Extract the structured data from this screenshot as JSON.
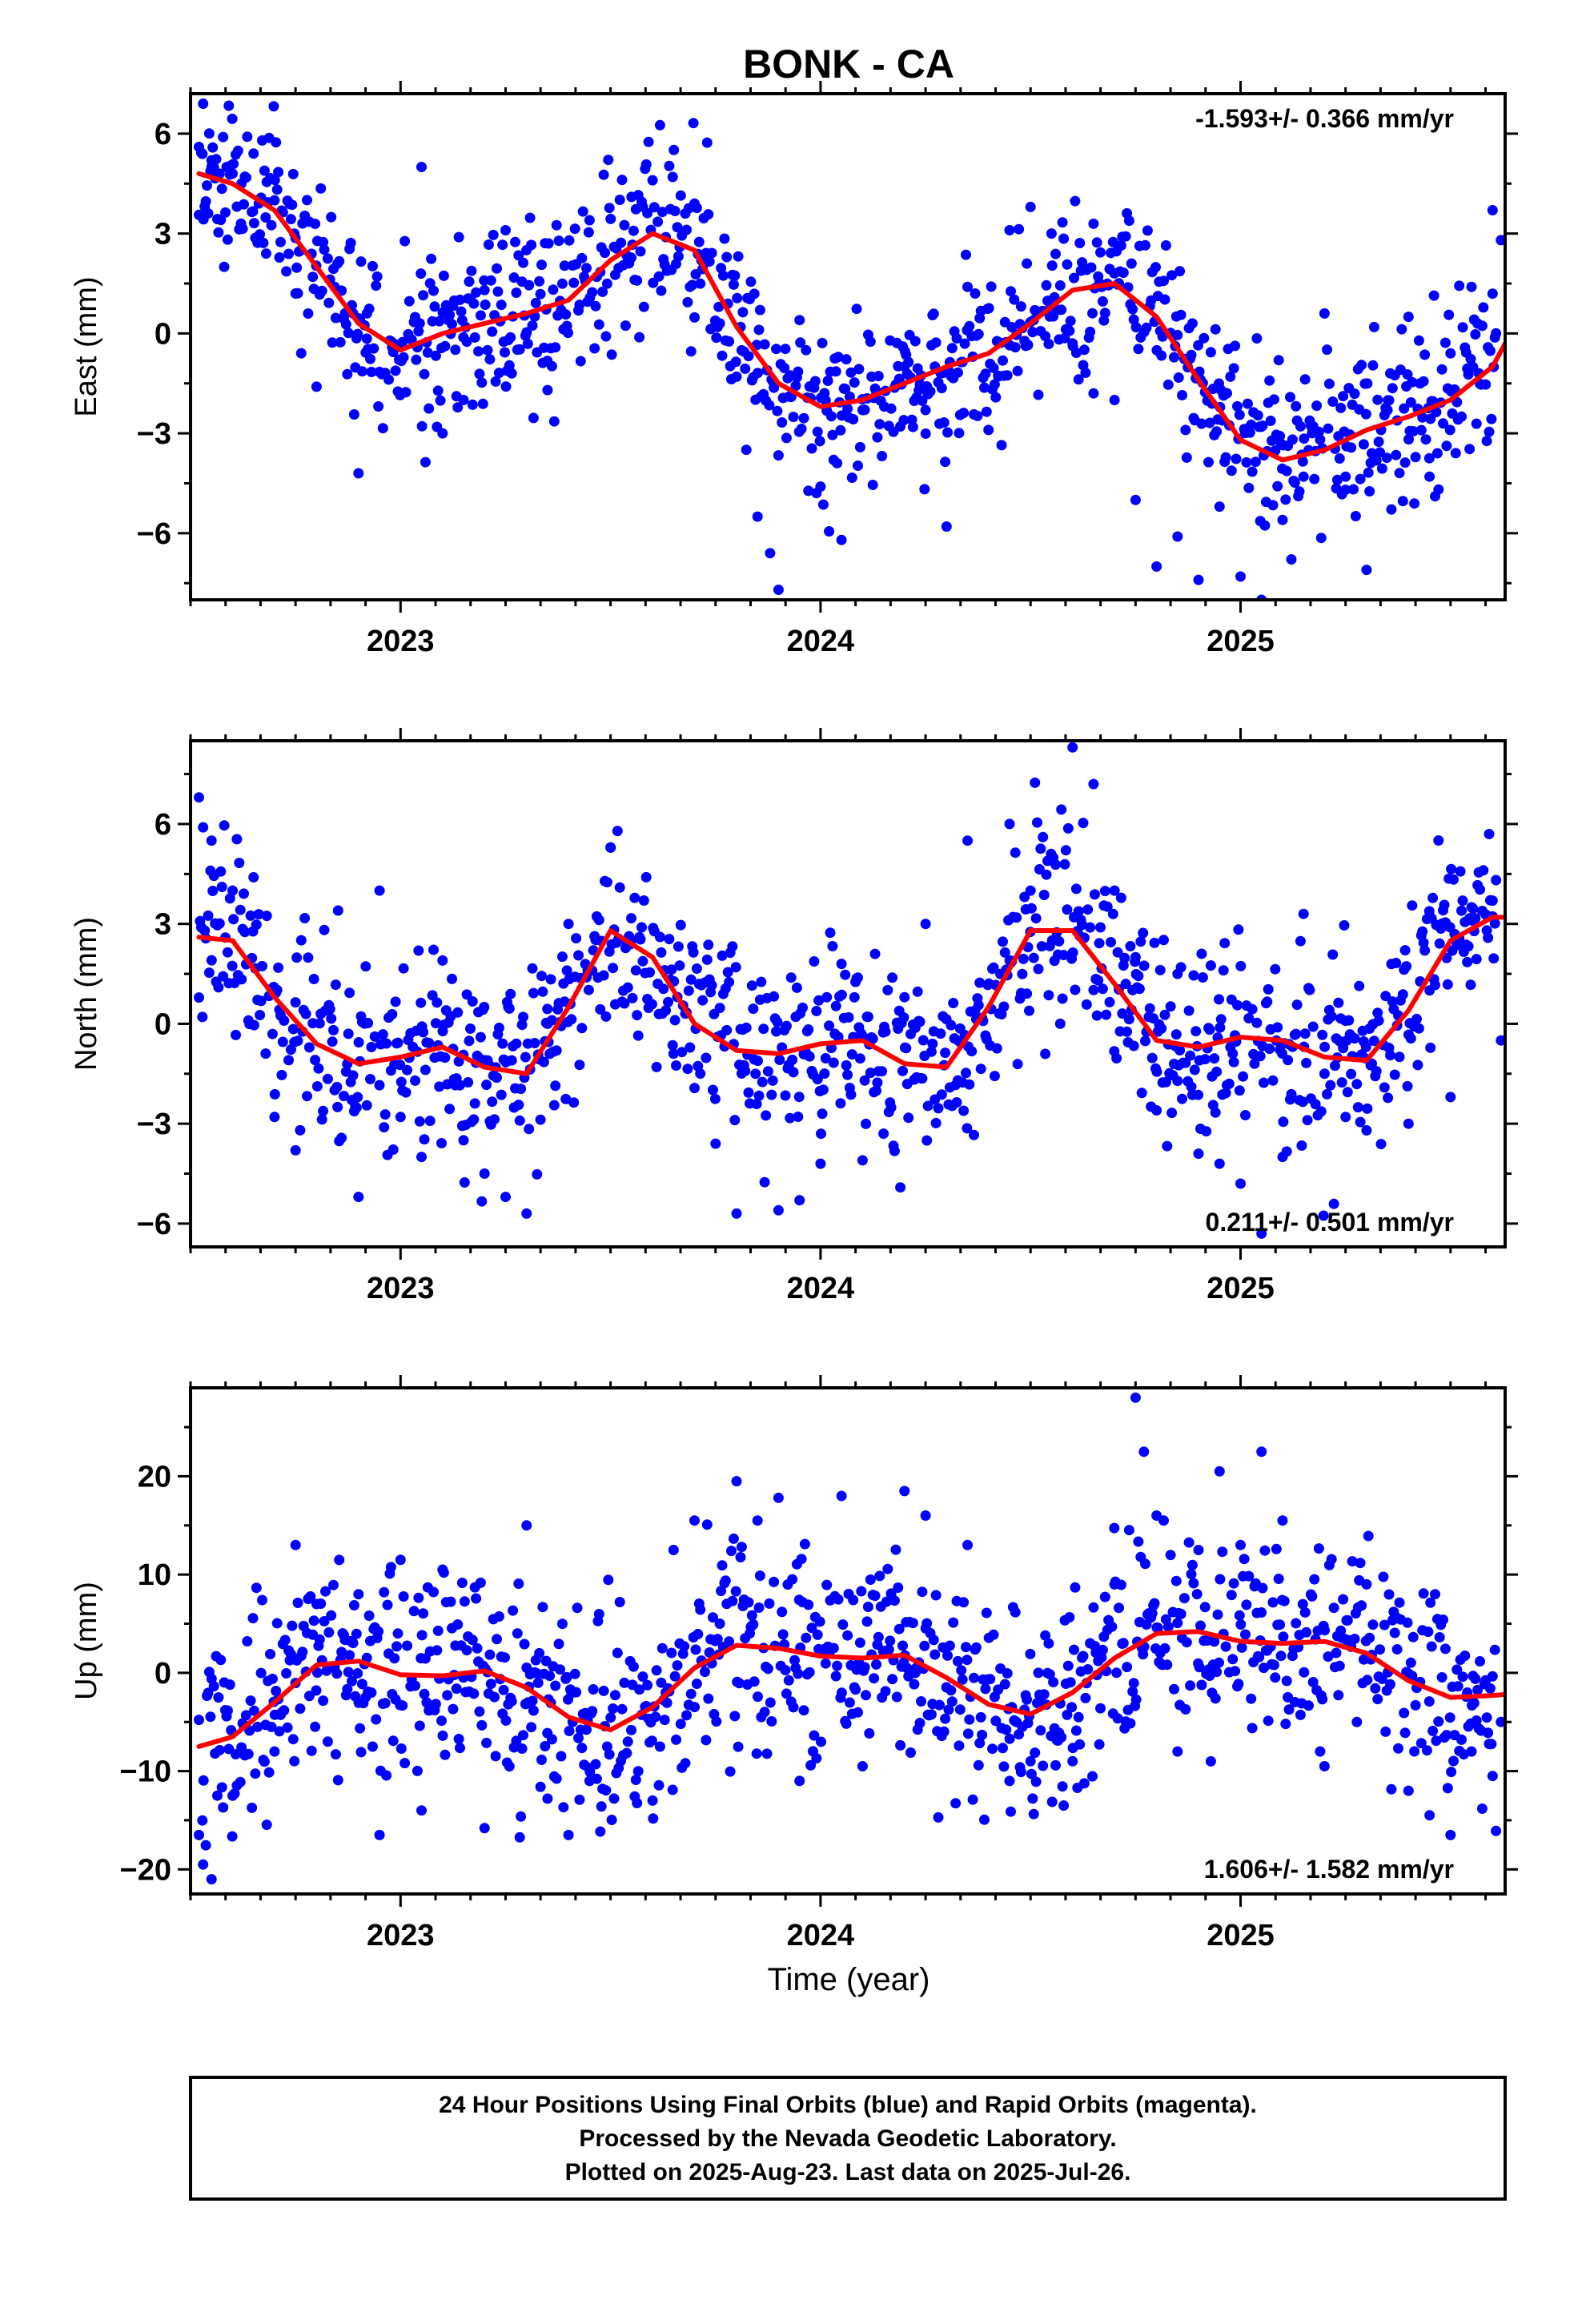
{
  "title": "BONK - CA",
  "xlabel": "Time (year)",
  "footer": {
    "line1": "24 Hour Positions Using Final Orbits (blue) and Rapid Orbits (magenta).",
    "line2": "Processed by the Nevada Geodetic Laboratory.",
    "line3": "Plotted on 2025-Aug-23. Last data on 2025-Jul-26."
  },
  "colors": {
    "final_orbits": "#0000ff",
    "fit": "#ff0000",
    "frame": "#000000"
  },
  "chart_data": [
    {
      "type": "scatter",
      "ylabel": "East (mm)",
      "rate_text": "-1.593+/- 0.366 mm/yr",
      "rate_position": "top-right",
      "xlim": [
        2022.5,
        2025.63
      ],
      "ylim": [
        -8,
        7.2
      ],
      "xticks": [
        2023,
        2024,
        2025
      ],
      "yticks": [
        -6,
        -3,
        0,
        3,
        6
      ],
      "ytick_labels": [
        "−6",
        "−3",
        "0",
        "3",
        "6"
      ],
      "fit": [
        [
          2022.52,
          4.8
        ],
        [
          2022.6,
          4.5
        ],
        [
          2022.7,
          3.7
        ],
        [
          2022.8,
          2.0
        ],
        [
          2022.9,
          0.3
        ],
        [
          2023.0,
          -0.5
        ],
        [
          2023.1,
          0.0
        ],
        [
          2023.2,
          0.3
        ],
        [
          2023.3,
          0.6
        ],
        [
          2023.4,
          1.0
        ],
        [
          2023.5,
          2.2
        ],
        [
          2023.6,
          3.0
        ],
        [
          2023.7,
          2.5
        ],
        [
          2023.8,
          0.2
        ],
        [
          2023.9,
          -1.5
        ],
        [
          2024.0,
          -2.2
        ],
        [
          2024.1,
          -2.0
        ],
        [
          2024.2,
          -1.5
        ],
        [
          2024.3,
          -1.0
        ],
        [
          2024.4,
          -0.6
        ],
        [
          2024.5,
          0.3
        ],
        [
          2024.6,
          1.3
        ],
        [
          2024.7,
          1.5
        ],
        [
          2024.8,
          0.5
        ],
        [
          2024.9,
          -1.4
        ],
        [
          2025.0,
          -3.2
        ],
        [
          2025.1,
          -3.8
        ],
        [
          2025.2,
          -3.5
        ],
        [
          2025.3,
          -2.9
        ],
        [
          2025.4,
          -2.5
        ],
        [
          2025.5,
          -2.0
        ],
        [
          2025.6,
          -1.0
        ],
        [
          2025.63,
          -0.3
        ]
      ],
      "amp": 1.3,
      "seed": 11,
      "points": [
        [
          2022.52,
          5.6
        ],
        [
          2022.53,
          6.9
        ],
        [
          2022.55,
          5.2
        ],
        [
          2022.58,
          2.0
        ],
        [
          2022.6,
          4.8
        ],
        [
          2022.62,
          3.3
        ],
        [
          2022.65,
          5.4
        ],
        [
          2022.68,
          2.4
        ],
        [
          2022.7,
          4.0
        ],
        [
          2022.75,
          1.2
        ],
        [
          2022.8,
          -1.6
        ],
        [
          2022.85,
          2.1
        ],
        [
          2022.9,
          -4.2
        ],
        [
          2022.92,
          0.6
        ],
        [
          2023.0,
          -0.8
        ],
        [
          2023.05,
          5.0
        ],
        [
          2023.1,
          -3.0
        ],
        [
          2023.15,
          -2.0
        ],
        [
          2023.2,
          1.3
        ],
        [
          2023.25,
          3.1
        ],
        [
          2023.3,
          2.5
        ],
        [
          2023.35,
          -1.7
        ],
        [
          2023.45,
          3.4
        ],
        [
          2023.55,
          4.1
        ],
        [
          2023.6,
          4.6
        ],
        [
          2023.7,
          3.9
        ],
        [
          2023.8,
          -1.3
        ],
        [
          2023.85,
          -5.5
        ],
        [
          2023.88,
          -6.6
        ],
        [
          2023.9,
          -7.7
        ],
        [
          2023.95,
          0.4
        ],
        [
          2024.0,
          -4.6
        ],
        [
          2024.05,
          -6.2
        ],
        [
          2024.1,
          -2.3
        ],
        [
          2024.2,
          -1.0
        ],
        [
          2024.25,
          -2.3
        ],
        [
          2024.3,
          -5.8
        ],
        [
          2024.35,
          1.4
        ],
        [
          2024.4,
          -2.9
        ],
        [
          2024.45,
          3.1
        ],
        [
          2024.5,
          3.8
        ],
        [
          2024.55,
          3.0
        ],
        [
          2024.6,
          -0.3
        ],
        [
          2024.65,
          -1.8
        ],
        [
          2024.7,
          -2.0
        ],
        [
          2024.75,
          -5.0
        ],
        [
          2024.8,
          -7.0
        ],
        [
          2024.85,
          -6.1
        ],
        [
          2024.9,
          -7.4
        ],
        [
          2024.95,
          -5.2
        ],
        [
          2025.0,
          -7.3
        ],
        [
          2025.05,
          -8.0
        ],
        [
          2025.1,
          -5.6
        ],
        [
          2025.15,
          -4.3
        ],
        [
          2025.2,
          0.6
        ],
        [
          2025.25,
          -4.3
        ],
        [
          2025.3,
          -7.1
        ],
        [
          2025.35,
          -2.3
        ],
        [
          2025.4,
          0.5
        ],
        [
          2025.45,
          -4.3
        ],
        [
          2025.5,
          -0.6
        ],
        [
          2025.55,
          1.4
        ],
        [
          2025.6,
          3.7
        ],
        [
          2025.62,
          2.8
        ]
      ]
    },
    {
      "type": "scatter",
      "ylabel": "North (mm)",
      "rate_text": "0.211+/- 0.501 mm/yr",
      "rate_position": "bottom-right",
      "xlim": [
        2022.5,
        2025.63
      ],
      "ylim": [
        -6.7,
        8.5
      ],
      "xticks": [
        2023,
        2024,
        2025
      ],
      "yticks": [
        -6,
        -3,
        0,
        3,
        6
      ],
      "ytick_labels": [
        "−6",
        "−3",
        "0",
        "3",
        "6"
      ],
      "fit": [
        [
          2022.52,
          2.6
        ],
        [
          2022.6,
          2.5
        ],
        [
          2022.7,
          0.8
        ],
        [
          2022.8,
          -0.6
        ],
        [
          2022.9,
          -1.2
        ],
        [
          2023.0,
          -1.0
        ],
        [
          2023.1,
          -0.7
        ],
        [
          2023.2,
          -1.3
        ],
        [
          2023.3,
          -1.5
        ],
        [
          2023.4,
          0.5
        ],
        [
          2023.5,
          2.8
        ],
        [
          2023.6,
          2.0
        ],
        [
          2023.7,
          0.0
        ],
        [
          2023.8,
          -0.8
        ],
        [
          2023.9,
          -0.9
        ],
        [
          2024.0,
          -0.6
        ],
        [
          2024.1,
          -0.5
        ],
        [
          2024.2,
          -1.2
        ],
        [
          2024.3,
          -1.3
        ],
        [
          2024.4,
          0.5
        ],
        [
          2024.5,
          2.8
        ],
        [
          2024.6,
          2.8
        ],
        [
          2024.7,
          1.2
        ],
        [
          2024.8,
          -0.5
        ],
        [
          2024.9,
          -0.7
        ],
        [
          2025.0,
          -0.4
        ],
        [
          2025.1,
          -0.5
        ],
        [
          2025.2,
          -1.0
        ],
        [
          2025.3,
          -1.1
        ],
        [
          2025.4,
          0.4
        ],
        [
          2025.5,
          2.5
        ],
        [
          2025.6,
          3.2
        ],
        [
          2025.63,
          3.2
        ]
      ],
      "amp": 1.4,
      "seed": 23,
      "points": [
        [
          2022.52,
          6.8
        ],
        [
          2022.53,
          5.9
        ],
        [
          2022.55,
          5.5
        ],
        [
          2022.6,
          4.0
        ],
        [
          2022.65,
          4.4
        ],
        [
          2022.7,
          -2.8
        ],
        [
          2022.75,
          -3.8
        ],
        [
          2022.85,
          -2.5
        ],
        [
          2022.9,
          -5.2
        ],
        [
          2022.95,
          4.0
        ],
        [
          2023.0,
          -2.8
        ],
        [
          2023.05,
          -4.0
        ],
        [
          2023.1,
          1.9
        ],
        [
          2023.15,
          -3.5
        ],
        [
          2023.2,
          -4.5
        ],
        [
          2023.25,
          -5.2
        ],
        [
          2023.3,
          -5.7
        ],
        [
          2023.35,
          0.0
        ],
        [
          2023.4,
          3.0
        ],
        [
          2023.5,
          5.3
        ],
        [
          2023.55,
          2.5
        ],
        [
          2023.65,
          -0.9
        ],
        [
          2023.75,
          -3.6
        ],
        [
          2023.8,
          -5.7
        ],
        [
          2023.9,
          -5.6
        ],
        [
          2023.95,
          -5.3
        ],
        [
          2024.0,
          -4.2
        ],
        [
          2024.05,
          1.8
        ],
        [
          2024.1,
          -4.1
        ],
        [
          2024.15,
          -3.3
        ],
        [
          2024.2,
          0.8
        ],
        [
          2024.25,
          3.0
        ],
        [
          2024.35,
          5.5
        ],
        [
          2024.45,
          6.0
        ],
        [
          2024.5,
          4.0
        ],
        [
          2024.6,
          8.3
        ],
        [
          2024.65,
          7.2
        ],
        [
          2024.7,
          4.0
        ],
        [
          2024.75,
          2.0
        ],
        [
          2024.8,
          -2.6
        ],
        [
          2024.85,
          1.5
        ],
        [
          2024.9,
          -3.9
        ],
        [
          2024.95,
          -4.2
        ],
        [
          2025.0,
          -4.8
        ],
        [
          2025.05,
          -6.3
        ],
        [
          2025.1,
          -4.0
        ],
        [
          2025.15,
          3.3
        ],
        [
          2025.2,
          -1.5
        ],
        [
          2025.25,
          -2.8
        ],
        [
          2025.3,
          -3.2
        ],
        [
          2025.4,
          -3.0
        ],
        [
          2025.45,
          1.0
        ],
        [
          2025.5,
          -2.2
        ],
        [
          2025.55,
          3.5
        ],
        [
          2025.6,
          3.7
        ],
        [
          2025.62,
          -0.5
        ]
      ]
    },
    {
      "type": "scatter",
      "ylabel": "Up (mm)",
      "rate_text": "1.606+/- 1.582 mm/yr",
      "rate_position": "bottom-right",
      "xlim": [
        2022.5,
        2025.63
      ],
      "ylim": [
        -22.5,
        29
      ],
      "xticks": [
        2023,
        2024,
        2025
      ],
      "yticks": [
        -20,
        -10,
        0,
        10,
        20
      ],
      "ytick_labels": [
        "−20",
        "−10",
        "0",
        "10",
        "20"
      ],
      "fit": [
        [
          2022.52,
          -7.5
        ],
        [
          2022.6,
          -6.5
        ],
        [
          2022.7,
          -3.0
        ],
        [
          2022.8,
          0.8
        ],
        [
          2022.9,
          1.2
        ],
        [
          2023.0,
          -0.2
        ],
        [
          2023.1,
          -0.3
        ],
        [
          2023.2,
          0.2
        ],
        [
          2023.3,
          -1.5
        ],
        [
          2023.4,
          -4.5
        ],
        [
          2023.5,
          -5.8
        ],
        [
          2023.6,
          -3.5
        ],
        [
          2023.7,
          0.5
        ],
        [
          2023.8,
          2.8
        ],
        [
          2023.9,
          2.5
        ],
        [
          2024.0,
          1.7
        ],
        [
          2024.1,
          1.5
        ],
        [
          2024.2,
          1.8
        ],
        [
          2024.3,
          -0.5
        ],
        [
          2024.4,
          -3.2
        ],
        [
          2024.5,
          -4.2
        ],
        [
          2024.6,
          -2.0
        ],
        [
          2024.7,
          1.5
        ],
        [
          2024.8,
          4.0
        ],
        [
          2024.9,
          4.2
        ],
        [
          2025.0,
          3.2
        ],
        [
          2025.1,
          3.0
        ],
        [
          2025.2,
          3.2
        ],
        [
          2025.3,
          2.0
        ],
        [
          2025.4,
          -0.8
        ],
        [
          2025.5,
          -2.5
        ],
        [
          2025.6,
          -2.3
        ],
        [
          2025.63,
          -2.2
        ]
      ],
      "amp": 5.0,
      "seed": 37,
      "points": [
        [
          2022.52,
          -16.5
        ],
        [
          2022.53,
          -19.5
        ],
        [
          2022.55,
          -21.0
        ],
        [
          2022.6,
          -12.5
        ],
        [
          2022.7,
          -8.0
        ],
        [
          2022.75,
          13.0
        ],
        [
          2022.8,
          7.0
        ],
        [
          2022.9,
          8.0
        ],
        [
          2022.95,
          -16.5
        ],
        [
          2023.0,
          11.5
        ],
        [
          2023.05,
          -14.0
        ],
        [
          2023.1,
          10.5
        ],
        [
          2023.2,
          -15.8
        ],
        [
          2023.3,
          15.0
        ],
        [
          2023.35,
          -12.8
        ],
        [
          2023.4,
          -16.5
        ],
        [
          2023.45,
          -11.0
        ],
        [
          2023.6,
          -13.0
        ],
        [
          2023.65,
          12.5
        ],
        [
          2023.7,
          15.5
        ],
        [
          2023.8,
          19.5
        ],
        [
          2023.85,
          15.5
        ],
        [
          2023.9,
          17.8
        ],
        [
          2023.95,
          -11.0
        ],
        [
          2024.05,
          18.0
        ],
        [
          2024.1,
          -9.5
        ],
        [
          2024.2,
          18.5
        ],
        [
          2024.25,
          16.0
        ],
        [
          2024.35,
          13.0
        ],
        [
          2024.45,
          -11.0
        ],
        [
          2024.5,
          -9.0
        ],
        [
          2024.6,
          -9.0
        ],
        [
          2024.7,
          9.0
        ],
        [
          2024.75,
          28.0
        ],
        [
          2024.77,
          22.5
        ],
        [
          2024.8,
          16.0
        ],
        [
          2024.85,
          -8.0
        ],
        [
          2024.9,
          12.5
        ],
        [
          2024.95,
          20.5
        ],
        [
          2025.0,
          13.0
        ],
        [
          2025.05,
          22.5
        ],
        [
          2025.1,
          15.5
        ],
        [
          2025.2,
          -9.5
        ],
        [
          2025.3,
          9.0
        ],
        [
          2025.4,
          -12.0
        ],
        [
          2025.45,
          -14.5
        ],
        [
          2025.5,
          -16.5
        ],
        [
          2025.55,
          -8.0
        ],
        [
          2025.6,
          -10.5
        ],
        [
          2025.62,
          -5.0
        ]
      ]
    }
  ]
}
